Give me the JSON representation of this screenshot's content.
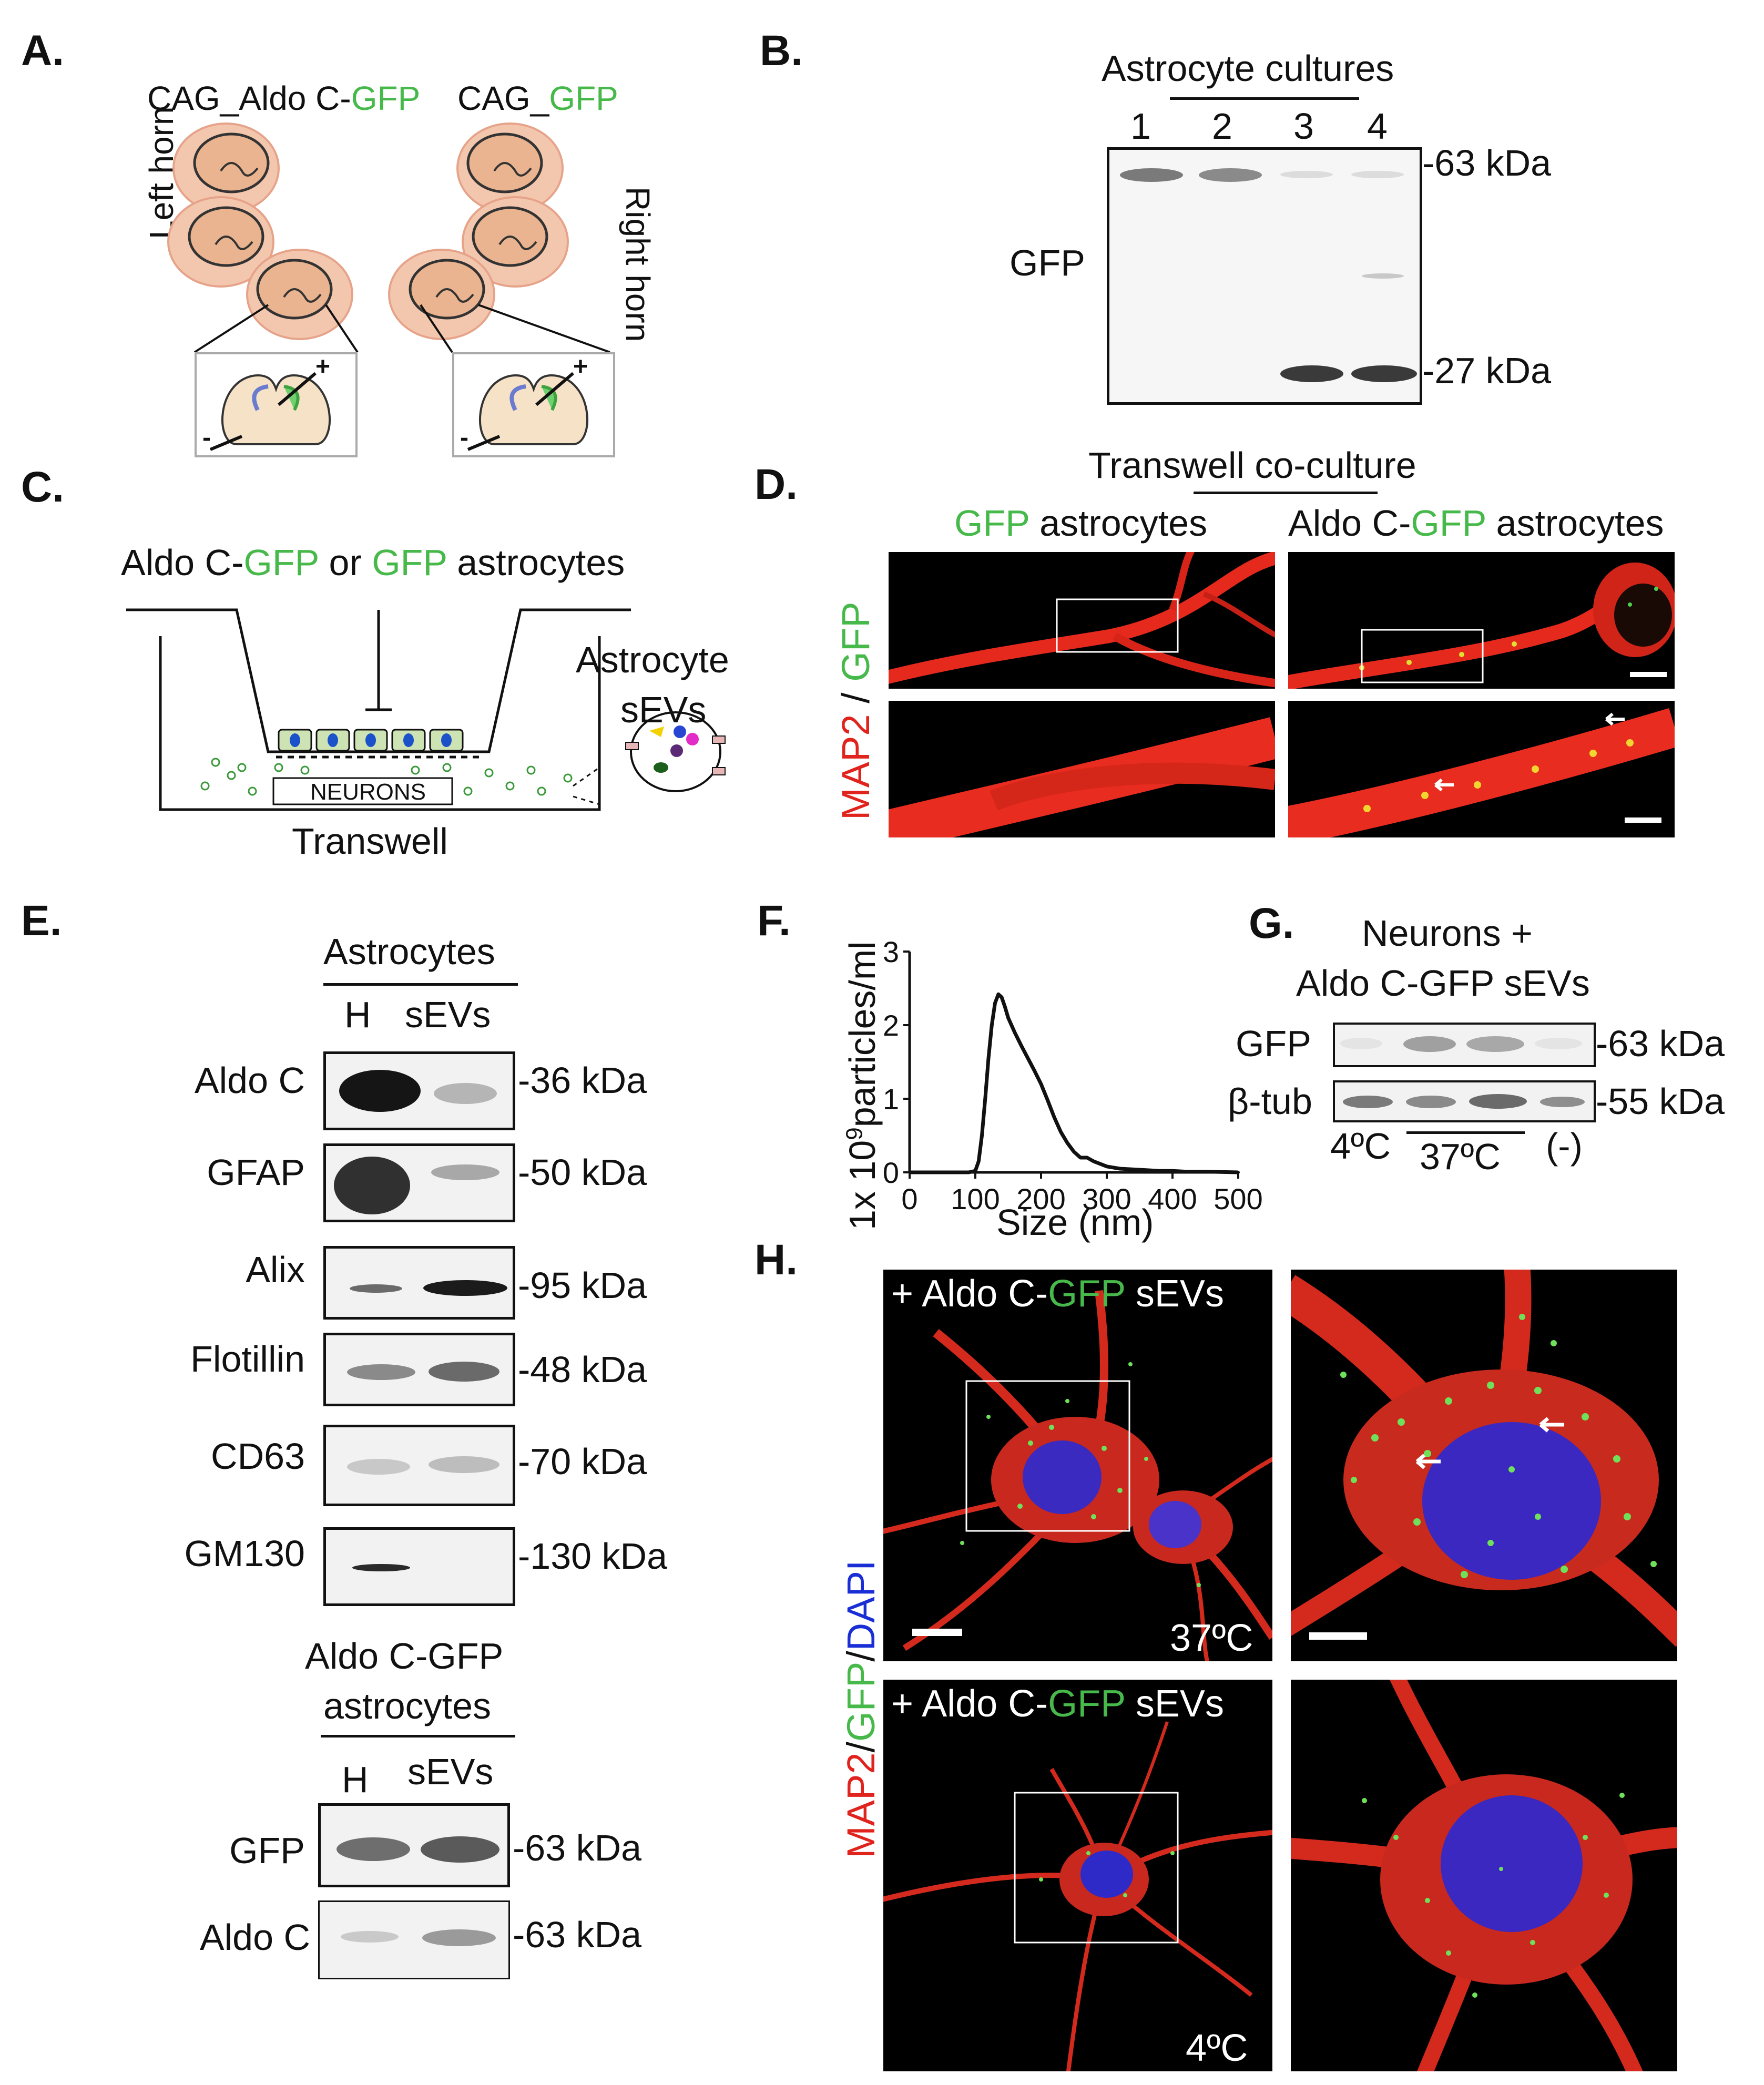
{
  "panels": {
    "A": {
      "letter": "A.",
      "left_construct": "CAG_Aldo C-",
      "left_construct_gfp": "GFP",
      "right_construct": "CAG_",
      "right_construct_gfp": "GFP",
      "left_horn": "Left horn",
      "right_horn": "Right horn",
      "plus": "+",
      "minus": "-"
    },
    "B": {
      "letter": "B.",
      "title": "Astrocyte cultures",
      "lanes": [
        "1",
        "2",
        "3",
        "4"
      ],
      "row_label": "GFP",
      "markers": [
        "-63 kDa",
        "-27 kDa"
      ]
    },
    "C": {
      "letter": "C.",
      "caption_1": "Aldo C-",
      "caption_gfp_1": "GFP",
      "caption_2": " or ",
      "caption_gfp_2": "GFP",
      "caption_3": " astrocytes",
      "sevs_label_1": "Astrocyte",
      "sevs_label_2": "sEVs",
      "neurons": "NEURONS",
      "transwell": "Transwell"
    },
    "D": {
      "letter": "D.",
      "title": "Transwell co-culture",
      "col1_gfp": "GFP",
      "col1_rest": " astrocytes",
      "col2_pre": "Aldo C-",
      "col2_gfp": "GFP",
      "col2_rest": " astrocytes",
      "side_map2": "MAP2",
      "side_sep": " / ",
      "side_gfp": "GFP"
    },
    "E": {
      "letter": "E.",
      "title": "Astrocytes",
      "cols": [
        "H",
        "sEVs"
      ],
      "rows": [
        {
          "label": "Aldo C",
          "marker": "-36 kDa"
        },
        {
          "label": "GFAP",
          "marker": "-50 kDa"
        },
        {
          "label": "Alix",
          "marker": "-95 kDa"
        },
        {
          "label": "Flotillin",
          "marker": "-48 kDa"
        },
        {
          "label": "CD63",
          "marker": "-70 kDa"
        },
        {
          "label": "GM130",
          "marker": "-130 kDa"
        }
      ],
      "title2_line1": "Aldo C-GFP",
      "title2_line2": "astrocytes",
      "cols2": [
        "H",
        "sEVs"
      ],
      "rows2": [
        {
          "label": "GFP",
          "marker": "-63 kDa"
        },
        {
          "label": "Aldo C",
          "marker": "-63 kDa"
        }
      ]
    },
    "F": {
      "letter": "F.",
      "ylabel_pre": "1x 10",
      "ylabel_sup": "9",
      "ylabel_post": "particles/ml"
    },
    "G": {
      "letter": "G.",
      "title_line1": "Neurons +",
      "title_line2": "Aldo C-GFP sEVs",
      "rows": [
        {
          "label": "GFP",
          "marker": "-63 kDa"
        },
        {
          "label": "β-tub",
          "marker": "-55 kDa"
        }
      ],
      "cond_4": "4ºC",
      "cond_37": "37ºC",
      "cond_neg": "(-)"
    },
    "H": {
      "letter": "H.",
      "overlay_pre": "+ Aldo C-",
      "overlay_gfp": "GFP",
      "overlay_post": " sEVs",
      "temp_top": "37ºC",
      "temp_bottom": "4ºC",
      "side_map2": "MAP2",
      "side_s1": "/",
      "side_gfp": "GFP",
      "side_s2": "/",
      "side_dapi": "DAPI"
    }
  },
  "chart_data": {
    "type": "line",
    "title": "",
    "xlabel": "Size (nm)",
    "ylabel": "1x 10^9particles/ml",
    "xlim": [
      0,
      500
    ],
    "ylim": [
      0,
      3
    ],
    "xticks": [
      0,
      100,
      200,
      300,
      400,
      500
    ],
    "yticks": [
      0,
      1,
      2,
      3
    ],
    "x": [
      0,
      90,
      100,
      105,
      110,
      115,
      120,
      125,
      130,
      135,
      140,
      145,
      150,
      160,
      170,
      180,
      190,
      200,
      210,
      220,
      230,
      240,
      250,
      260,
      270,
      280,
      300,
      320,
      340,
      360,
      380,
      400,
      420,
      450,
      500
    ],
    "y": [
      0,
      0,
      0.02,
      0.15,
      0.5,
      1.0,
      1.55,
      2.0,
      2.3,
      2.42,
      2.38,
      2.25,
      2.1,
      1.9,
      1.72,
      1.55,
      1.38,
      1.2,
      0.98,
      0.75,
      0.55,
      0.4,
      0.28,
      0.2,
      0.2,
      0.15,
      0.08,
      0.05,
      0.04,
      0.03,
      0.02,
      0.02,
      0.01,
      0.01,
      0
    ]
  }
}
